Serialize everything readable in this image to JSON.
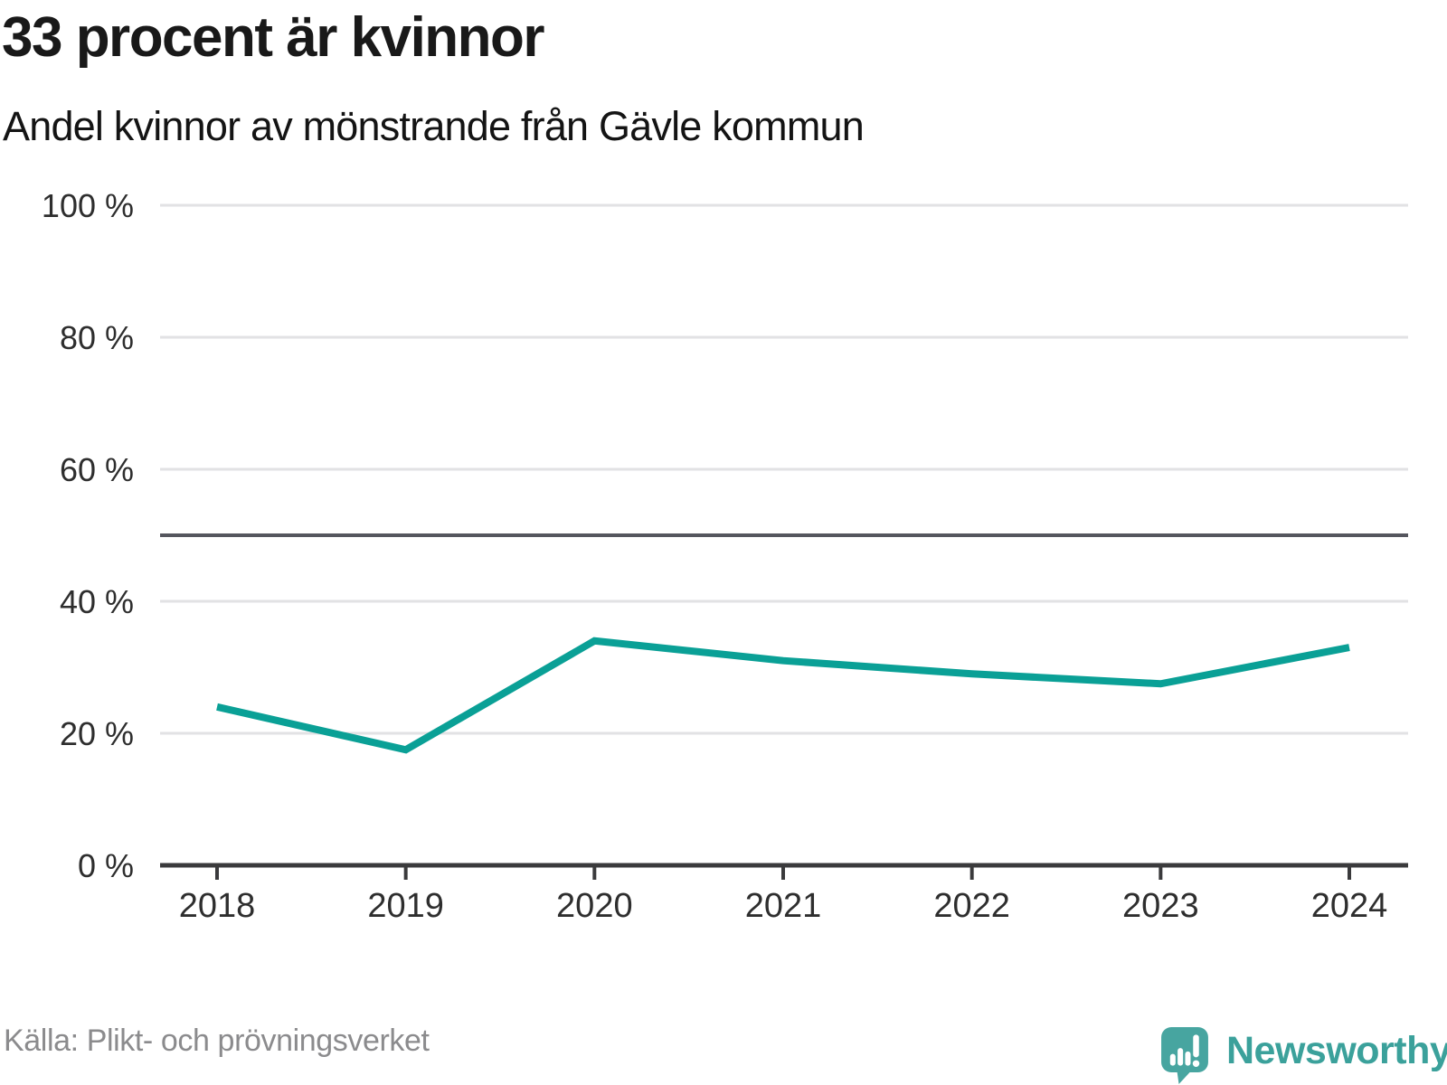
{
  "header": {
    "title": "33 procent är kvinnor",
    "subtitle": "Andel kvinnor av mönstrande från Gävle kommun"
  },
  "footer": {
    "source": "Källa: Plikt- och prövningsverket",
    "brand_name": "Newsworthy"
  },
  "colors": {
    "line": "#0aa096",
    "reference_line": "#55565e",
    "grid": "#e2e2e4",
    "axis": "#3a3a3c",
    "tick_label": "#2e2e2e",
    "brand_teal": "#47a5a0",
    "brand_text": "#3ba19b"
  },
  "chart_data": {
    "type": "line",
    "title": "33 procent är kvinnor",
    "subtitle": "Andel kvinnor av mönstrande från Gävle kommun",
    "categories": [
      "2018",
      "2019",
      "2020",
      "2021",
      "2022",
      "2023",
      "2024"
    ],
    "series": [
      {
        "name": "Andel kvinnor av mönstrande",
        "values": [
          24,
          17.5,
          34,
          31,
          29,
          27.5,
          33
        ]
      }
    ],
    "unit": "%",
    "ylim": [
      0,
      100
    ],
    "yticks": [
      0,
      20,
      40,
      60,
      80,
      100
    ],
    "ytick_suffix": " %",
    "reference_line": 50,
    "grid": true,
    "legend": false,
    "source": "Källa: Plikt- och prövningsverket"
  }
}
